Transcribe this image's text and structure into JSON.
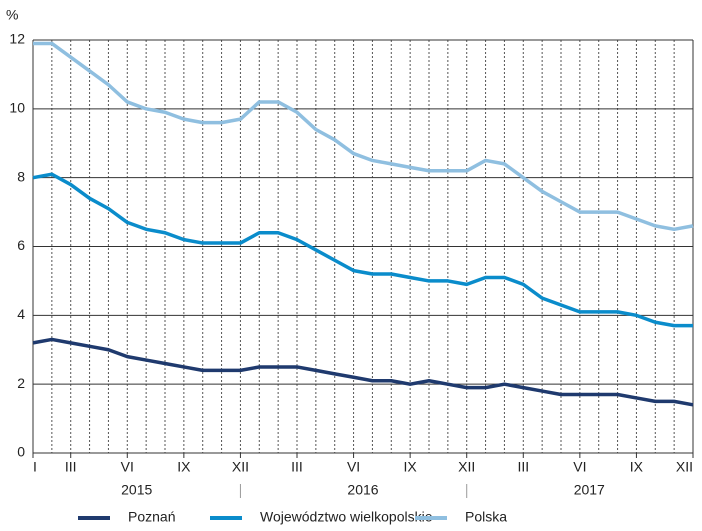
{
  "chart_data": {
    "type": "line",
    "y_label": "%",
    "categories": [
      "I",
      null,
      "III",
      null,
      null,
      "VI",
      null,
      null,
      "IX",
      null,
      null,
      "XII",
      null,
      null,
      "III",
      null,
      null,
      "VI",
      null,
      null,
      "IX",
      null,
      null,
      "XII",
      null,
      null,
      "III",
      null,
      null,
      "VI",
      null,
      null,
      "IX",
      null,
      null,
      "XII"
    ],
    "x_groups": [
      "2015",
      "2016",
      "2017"
    ],
    "ylim": [
      0,
      12
    ],
    "yticks": [
      0,
      2,
      4,
      6,
      8,
      10,
      12
    ],
    "grid": true,
    "legend": "bottom",
    "series": [
      {
        "name": "Poznań",
        "color": "#1f3a6e",
        "values": [
          3.2,
          3.3,
          3.2,
          3.1,
          3.0,
          2.8,
          2.7,
          2.6,
          2.5,
          2.4,
          2.4,
          2.4,
          2.5,
          2.5,
          2.5,
          2.4,
          2.3,
          2.2,
          2.1,
          2.1,
          2.0,
          2.1,
          2.0,
          1.9,
          1.9,
          2.0,
          1.9,
          1.8,
          1.7,
          1.7,
          1.7,
          1.7,
          1.6,
          1.5,
          1.5,
          1.4
        ]
      },
      {
        "name": "Województwo wielkopolskie",
        "color": "#0a8ccb",
        "values": [
          8.0,
          8.1,
          7.8,
          7.4,
          7.1,
          6.7,
          6.5,
          6.4,
          6.2,
          6.1,
          6.1,
          6.1,
          6.4,
          6.4,
          6.2,
          5.9,
          5.6,
          5.3,
          5.2,
          5.2,
          5.1,
          5.0,
          5.0,
          4.9,
          5.1,
          5.1,
          4.9,
          4.5,
          4.3,
          4.1,
          4.1,
          4.1,
          4.0,
          3.8,
          3.7,
          3.7
        ]
      },
      {
        "name": "Polska",
        "color": "#8fbfe0",
        "values": [
          11.9,
          11.9,
          11.5,
          11.1,
          10.7,
          10.2,
          10.0,
          9.9,
          9.7,
          9.6,
          9.6,
          9.7,
          10.2,
          10.2,
          9.9,
          9.4,
          9.1,
          8.7,
          8.5,
          8.4,
          8.3,
          8.2,
          8.2,
          8.2,
          8.5,
          8.4,
          8.0,
          7.6,
          7.3,
          7.0,
          7.0,
          7.0,
          6.8,
          6.6,
          6.5,
          6.6
        ]
      }
    ]
  }
}
